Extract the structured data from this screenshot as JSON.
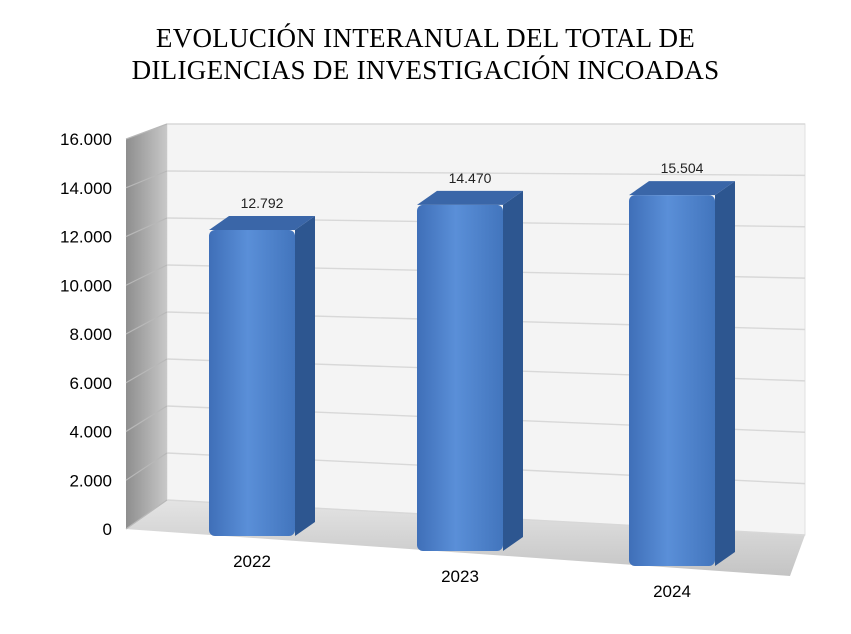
{
  "chart_data": {
    "type": "bar",
    "title_line1": "EVOLUCIÓN INTERANUAL DEL TOTAL DE",
    "title_line2": "DILIGENCIAS DE INVESTIGACIÓN INCOADAS",
    "categories": [
      "2022",
      "2023",
      "2024"
    ],
    "values": [
      12792,
      14470,
      15504
    ],
    "data_labels": [
      "12.792",
      "14.470",
      "15.504"
    ],
    "y_ticks": [
      0,
      2000,
      4000,
      6000,
      8000,
      10000,
      12000,
      14000,
      16000
    ],
    "y_tick_labels": [
      "0",
      "2.000",
      "4.000",
      "6.000",
      "8.000",
      "10.000",
      "12.000",
      "14.000",
      "16.000"
    ],
    "ylim": [
      0,
      16000
    ],
    "grid": true,
    "legend": "none",
    "style": "3d-perspective"
  },
  "colors": {
    "bar_front": "#4a7cc4",
    "bar_side": "#2d5690",
    "bar_top": "#3a66a8",
    "wall": "#f4f4f4",
    "side_wall": "#a9a9a9",
    "floor": "#d0d0d0",
    "grid": "#d8d8d8"
  }
}
